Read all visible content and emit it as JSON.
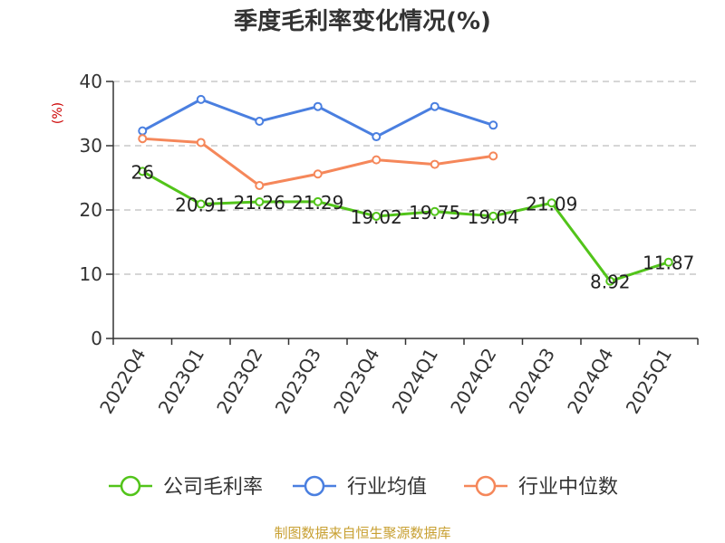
{
  "chart_data": {
    "type": "line",
    "title": "季度毛利率变化情况(%)",
    "ylabel": "(%)",
    "ylim": [
      0,
      40
    ],
    "yticks": [
      "0",
      "10",
      "20",
      "30",
      "40"
    ],
    "grid": true,
    "legend_position": "bottom",
    "categories": [
      "2022Q4",
      "2023Q1",
      "2023Q2",
      "2023Q3",
      "2023Q4",
      "2024Q1",
      "2024Q2",
      "2024Q3",
      "2024Q4",
      "2025Q1"
    ],
    "series": [
      {
        "name": "公司毛利率",
        "color": "#52c41a",
        "values": [
          26,
          20.91,
          21.26,
          21.29,
          19.02,
          19.75,
          19.04,
          21.09,
          8.92,
          11.87
        ],
        "labels": [
          "26",
          "20.91",
          "21.26",
          "21.29",
          "19.02",
          "19.75",
          "19.04",
          "21.09",
          "8.92",
          "11.87"
        ]
      },
      {
        "name": "行业均值",
        "color": "#4a7fe0",
        "values": [
          32.3,
          37.2,
          33.8,
          36.1,
          31.4,
          36.1,
          33.2,
          null,
          null,
          null
        ]
      },
      {
        "name": "行业中位数",
        "color": "#f5875a",
        "values": [
          31.1,
          30.5,
          23.8,
          25.6,
          27.8,
          27.1,
          28.4,
          null,
          null,
          null
        ]
      }
    ]
  },
  "footer": {
    "source": "制图数据来自恒生聚源数据库"
  }
}
